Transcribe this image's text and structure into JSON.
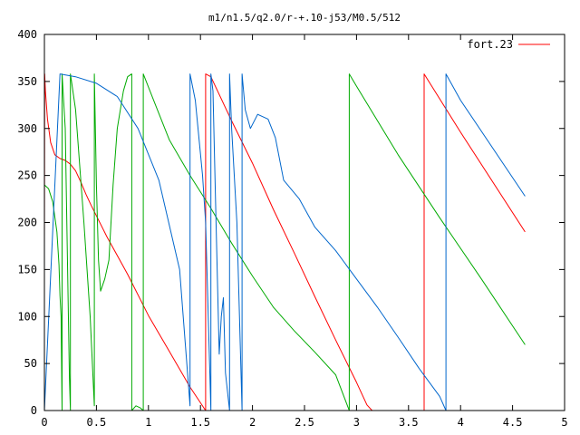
{
  "chart_data": {
    "type": "line",
    "title": "m1/n1.5/q2.0/r-+.10-j53/M0.5/512",
    "xlabel": "",
    "ylabel": "",
    "xlim": [
      0,
      5
    ],
    "ylim": [
      0,
      400
    ],
    "grid": false,
    "legend_position": "top-right",
    "x_ticks": [
      0,
      0.5,
      1,
      1.5,
      2,
      2.5,
      3,
      3.5,
      4,
      4.5,
      5
    ],
    "x_tick_labels": [
      "0",
      "0.5",
      "1",
      "1.5",
      "2",
      "2.5",
      "3",
      "3.5",
      "4",
      "4.5",
      "5"
    ],
    "y_ticks": [
      0,
      50,
      100,
      150,
      200,
      250,
      300,
      350,
      400
    ],
    "y_tick_labels": [
      "0",
      "50",
      "100",
      "150",
      "200",
      "250",
      "300",
      "350",
      "400"
    ],
    "series": [
      {
        "name": "fort.23",
        "color": "#ff0000",
        "points": [
          [
            0,
            175
          ],
          [
            0.003,
            358
          ],
          [
            0.01,
            340
          ],
          [
            0.03,
            310
          ],
          [
            0.06,
            285
          ],
          [
            0.1,
            272
          ],
          [
            0.15,
            268
          ],
          [
            0.2,
            266
          ],
          [
            0.25,
            262
          ],
          [
            0.3,
            255
          ],
          [
            0.35,
            243
          ],
          [
            0.4,
            230
          ],
          [
            0.45,
            218
          ],
          [
            0.5,
            207
          ],
          [
            0.6,
            185
          ],
          [
            0.8,
            145
          ],
          [
            1.0,
            101
          ],
          [
            1.2,
            63
          ],
          [
            1.4,
            25
          ],
          [
            1.55,
            0
          ],
          [
            1.55,
            358
          ],
          [
            1.6,
            355
          ],
          [
            1.8,
            308
          ],
          [
            2.0,
            263
          ],
          [
            2.2,
            214
          ],
          [
            2.4,
            168
          ],
          [
            2.6,
            121
          ],
          [
            2.8,
            75
          ],
          [
            3.0,
            30
          ],
          [
            3.1,
            6
          ],
          [
            3.15,
            0
          ],
          [
            3.65,
            0
          ],
          [
            3.65,
            358
          ],
          [
            4.0,
            296
          ],
          [
            4.62,
            190
          ]
        ]
      },
      {
        "name": "",
        "color": "#00aa00",
        "points": [
          [
            0,
            240
          ],
          [
            0.04,
            236
          ],
          [
            0.08,
            222
          ],
          [
            0.12,
            190
          ],
          [
            0.14,
            155
          ],
          [
            0.15,
            122
          ],
          [
            0.16,
            100
          ],
          [
            0.17,
            0
          ],
          [
            0.17,
            358
          ],
          [
            0.2,
            300
          ],
          [
            0.24,
            35
          ],
          [
            0.25,
            0
          ],
          [
            0.25,
            358
          ],
          [
            0.3,
            320
          ],
          [
            0.38,
            200
          ],
          [
            0.44,
            100
          ],
          [
            0.48,
            5
          ],
          [
            0.48,
            358
          ],
          [
            0.5,
            240
          ],
          [
            0.52,
            160
          ],
          [
            0.54,
            127
          ],
          [
            0.58,
            140
          ],
          [
            0.62,
            160
          ],
          [
            0.66,
            240
          ],
          [
            0.7,
            300
          ],
          [
            0.76,
            340
          ],
          [
            0.8,
            355
          ],
          [
            0.84,
            358
          ],
          [
            0.84,
            0
          ],
          [
            0.88,
            5
          ],
          [
            0.92,
            3
          ],
          [
            0.95,
            0
          ],
          [
            0.95,
            358
          ],
          [
            1.05,
            330
          ],
          [
            1.2,
            288
          ],
          [
            1.4,
            250
          ],
          [
            1.6,
            215
          ],
          [
            1.8,
            178
          ],
          [
            2.0,
            143
          ],
          [
            2.2,
            110
          ],
          [
            2.4,
            85
          ],
          [
            2.6,
            62
          ],
          [
            2.8,
            38
          ],
          [
            2.93,
            0
          ],
          [
            2.93,
            358
          ],
          [
            3.0,
            345
          ],
          [
            3.4,
            272
          ],
          [
            3.8,
            205
          ],
          [
            4.2,
            140
          ],
          [
            4.62,
            70
          ]
        ]
      },
      {
        "name": "",
        "color": "#0066cc",
        "points": [
          [
            0,
            0
          ],
          [
            0.15,
            358
          ],
          [
            0.3,
            355
          ],
          [
            0.5,
            348
          ],
          [
            0.7,
            334
          ],
          [
            0.9,
            300
          ],
          [
            1.1,
            245
          ],
          [
            1.3,
            150
          ],
          [
            1.4,
            5
          ],
          [
            1.4,
            358
          ],
          [
            1.45,
            330
          ],
          [
            1.52,
            250
          ],
          [
            1.55,
            200
          ],
          [
            1.6,
            0
          ],
          [
            1.6,
            358
          ],
          [
            1.62,
            340
          ],
          [
            1.65,
            200
          ],
          [
            1.68,
            60
          ],
          [
            1.7,
            100
          ],
          [
            1.72,
            120
          ],
          [
            1.74,
            40
          ],
          [
            1.78,
            0
          ],
          [
            1.78,
            358
          ],
          [
            1.8,
            300
          ],
          [
            1.85,
            200
          ],
          [
            1.9,
            0
          ],
          [
            1.9,
            358
          ],
          [
            1.93,
            320
          ],
          [
            1.98,
            300
          ],
          [
            2.05,
            315
          ],
          [
            2.15,
            310
          ],
          [
            2.22,
            290
          ],
          [
            2.3,
            245
          ],
          [
            2.45,
            225
          ],
          [
            2.6,
            195
          ],
          [
            2.8,
            170
          ],
          [
            3.0,
            140
          ],
          [
            3.2,
            110
          ],
          [
            3.4,
            78
          ],
          [
            3.6,
            45
          ],
          [
            3.8,
            15
          ],
          [
            3.86,
            0
          ],
          [
            3.86,
            358
          ],
          [
            4.0,
            330
          ],
          [
            4.62,
            228
          ]
        ]
      }
    ]
  }
}
